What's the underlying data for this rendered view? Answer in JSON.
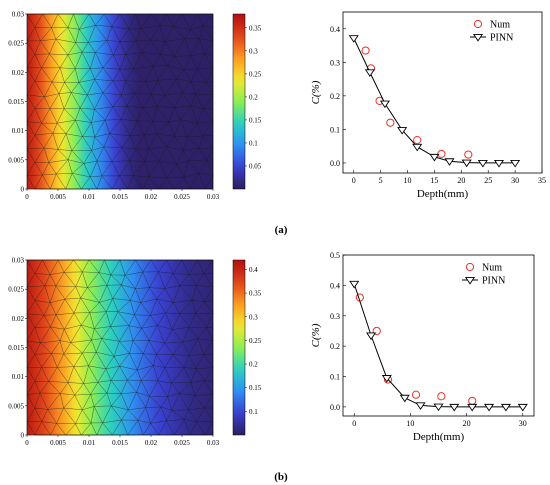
{
  "panel_labels": [
    "(a)",
    "(b)"
  ],
  "colorscale": [
    "#2d1e5e",
    "#3a3fcf",
    "#2f8ff2",
    "#2ad0c0",
    "#8bee55",
    "#f4e82e",
    "#fb9a22",
    "#e0431a",
    "#b01010"
  ],
  "chart_data": [
    {
      "type": "heatmap",
      "panel": "a",
      "x_ticks": [
        "0",
        "0.005",
        "0.01",
        "0.015",
        "0.02",
        "0.025",
        "0.03"
      ],
      "y_ticks": [
        "0",
        "0.005",
        "0.01",
        "0.015",
        "0.02",
        "0.025",
        "0.03"
      ],
      "xlim": [
        0,
        0.03
      ],
      "ylim": [
        0,
        0.03
      ],
      "value_range": [
        0,
        0.38
      ],
      "colorbar_ticks": [
        "0.05",
        "0.1",
        "0.15",
        "0.2",
        "0.25",
        "0.3",
        "0.35"
      ],
      "profile_x": [
        0,
        0.002,
        0.004,
        0.006,
        0.008,
        0.01,
        0.012,
        0.014,
        0.016,
        0.018,
        0.03
      ],
      "profile_v": [
        0.37,
        0.33,
        0.28,
        0.23,
        0.18,
        0.13,
        0.09,
        0.05,
        0.02,
        0.005,
        0.003
      ],
      "mesh": true
    },
    {
      "type": "scatter",
      "panel": "a",
      "xlabel": "Depth(mm)",
      "ylabel": "C(%)",
      "xlim": [
        -2,
        35
      ],
      "ylim": [
        -0.03,
        0.45
      ],
      "x_ticks": [
        0,
        5,
        10,
        15,
        20,
        25,
        30,
        35
      ],
      "y_ticks": [
        0.0,
        0.1,
        0.2,
        0.3,
        0.4
      ],
      "legend_position": "top-right",
      "series": [
        {
          "name": "Num",
          "marker": "circle",
          "color": "#e8332b",
          "x": [
            2.2,
            3.2,
            4.8,
            6.8,
            11.8,
            16.3,
            21.3
          ],
          "y": [
            0.335,
            0.282,
            0.185,
            0.12,
            0.068,
            0.027,
            0.025
          ]
        },
        {
          "name": "PINN",
          "marker": "triangle-down",
          "line": true,
          "color": "#000000",
          "x": [
            0,
            3.0,
            5.8,
            9.0,
            11.8,
            15.0,
            17.8,
            21.0,
            24.0,
            27.0,
            30.0
          ],
          "y": [
            0.372,
            0.27,
            0.177,
            0.098,
            0.048,
            0.018,
            0.005,
            0.001,
            0.0,
            0.0,
            0.0
          ]
        }
      ]
    },
    {
      "type": "heatmap",
      "panel": "b",
      "x_ticks": [
        "0",
        "0.005",
        "0.01",
        "0.015",
        "0.02",
        "0.025",
        "0.03"
      ],
      "y_ticks": [
        "0",
        "0.005",
        "0.01",
        "0.015",
        "0.02",
        "0.025",
        "0.03"
      ],
      "xlim": [
        0,
        0.03
      ],
      "ylim": [
        0,
        0.03
      ],
      "value_range": [
        0.05,
        0.42
      ],
      "colorbar_ticks": [
        "0.1",
        "0.15",
        "0.2",
        "0.25",
        "0.3",
        "0.35",
        "0.4"
      ],
      "profile_x": [
        0,
        0.003,
        0.006,
        0.009,
        0.012,
        0.015,
        0.018,
        0.021,
        0.024,
        0.027,
        0.03
      ],
      "profile_v": [
        0.41,
        0.37,
        0.32,
        0.26,
        0.21,
        0.17,
        0.13,
        0.1,
        0.08,
        0.065,
        0.06
      ],
      "mesh": true
    },
    {
      "type": "scatter",
      "panel": "b",
      "xlabel": "Depth(mm)",
      "ylabel": "C(%)",
      "xlim": [
        -2,
        32
      ],
      "ylim": [
        -0.03,
        0.5
      ],
      "x_ticks": [
        0,
        10,
        20,
        30
      ],
      "y_ticks": [
        0.0,
        0.1,
        0.2,
        0.3,
        0.4,
        0.5
      ],
      "legend_position": "top-right",
      "series": [
        {
          "name": "Num",
          "marker": "circle",
          "color": "#e8332b",
          "x": [
            1.0,
            4.0,
            6.0,
            11.0,
            15.5,
            21.0
          ],
          "y": [
            0.36,
            0.25,
            0.09,
            0.04,
            0.035,
            0.02
          ]
        },
        {
          "name": "PINN",
          "marker": "triangle-down",
          "line": true,
          "color": "#000000",
          "x": [
            0,
            3.0,
            5.8,
            9.0,
            11.8,
            15.0,
            17.8,
            21.0,
            24.0,
            27.0,
            30.0
          ],
          "y": [
            0.405,
            0.235,
            0.095,
            0.03,
            0.005,
            0.001,
            0.0,
            0.0,
            0.0,
            0.0,
            0.0
          ]
        }
      ]
    }
  ]
}
